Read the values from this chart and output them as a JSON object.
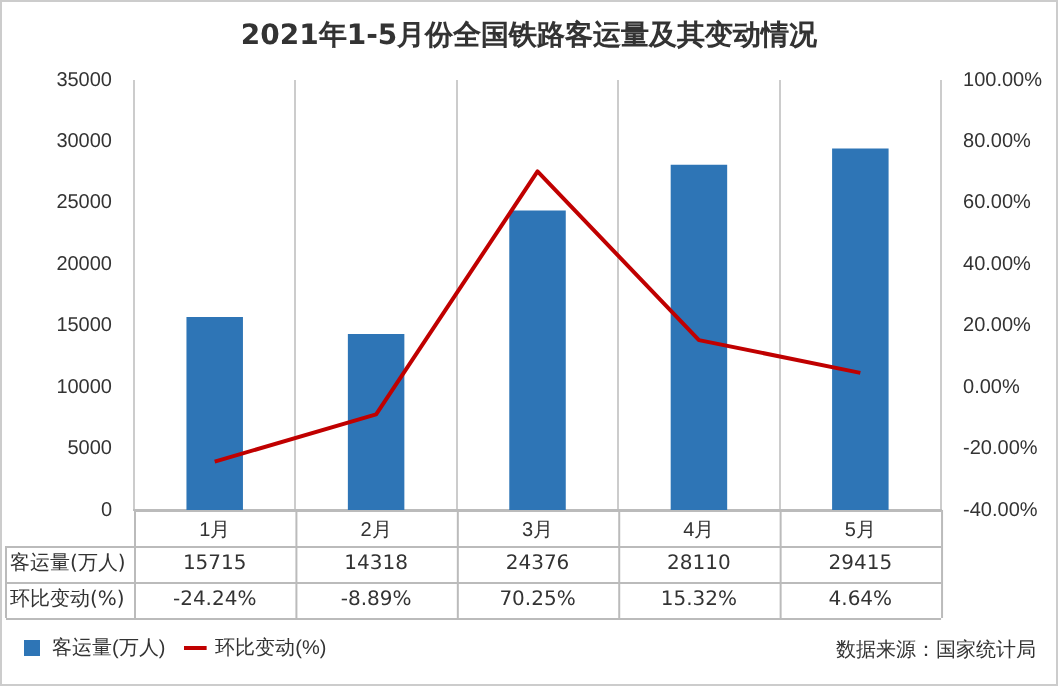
{
  "chart_data": {
    "type": "bar",
    "title": "2021年1-5月份全国铁路客运量及其变动情况",
    "categories": [
      "1月",
      "2月",
      "3月",
      "4月",
      "5月"
    ],
    "series": [
      {
        "name": "客运量(万人)",
        "color": "#2e75b6",
        "values": [
          15715,
          14318,
          24376,
          28110,
          29415
        ],
        "value_labels": [
          "15715",
          "14318",
          "24376",
          "28110",
          "29415"
        ]
      },
      {
        "name": "环比变动(%)",
        "type": "line",
        "axis": "y2",
        "color": "#c00000",
        "values": [
          -24.24,
          -8.89,
          70.25,
          15.32,
          4.64
        ],
        "value_labels": [
          "-24.24%",
          "-8.89%",
          "70.25%",
          "15.32%",
          "4.64%"
        ]
      }
    ],
    "ylim": [
      0,
      35000
    ],
    "yticks": [
      0,
      5000,
      10000,
      15000,
      20000,
      25000,
      30000,
      35000
    ],
    "y2lim": [
      -40,
      100
    ],
    "y2ticks": [
      {
        "value": -40,
        "label": "-40.00%"
      },
      {
        "value": -20,
        "label": "-20.00%"
      },
      {
        "value": 0,
        "label": "0.00%"
      },
      {
        "value": 20,
        "label": "20.00%"
      },
      {
        "value": 40,
        "label": "40.00%"
      },
      {
        "value": 60,
        "label": "60.00%"
      },
      {
        "value": 80,
        "label": "80.00%"
      },
      {
        "value": 100,
        "label": "100.00%"
      }
    ],
    "grid": "x",
    "legend": "bottom left",
    "marker": "none",
    "line_style": "solid",
    "annotations": [
      "数据来源：国家统计局"
    ]
  }
}
